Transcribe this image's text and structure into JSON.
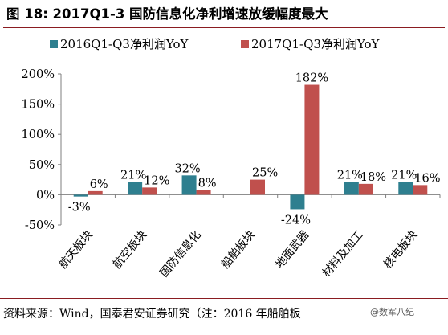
{
  "figure": {
    "title": "图 18: 2017Q1-3 国防信息化净利增速放缓幅度最大",
    "source": "资料来源：Wind，国泰君安证券研究（注：2016 年船舶板",
    "watermark": "@数军八纪"
  },
  "chart_data": {
    "type": "bar",
    "categories": [
      "航天板块",
      "航空板块",
      "国防信息化",
      "船舶板块",
      "地面武器",
      "材料及加工",
      "核电板块"
    ],
    "series": [
      {
        "name": "2016Q1-Q3净利润YoY",
        "color": "#2e7f8f",
        "values": [
          -3,
          21,
          32,
          null,
          -24,
          21,
          21
        ],
        "labels": [
          "-3%",
          "21%",
          "32%",
          "",
          "-24%",
          "21%",
          "21%"
        ]
      },
      {
        "name": "2017Q1-Q3净利润YoY",
        "color": "#c0504d",
        "values": [
          6,
          12,
          8,
          25,
          182,
          18,
          16
        ],
        "labels": [
          "6%",
          "12%",
          "8%",
          "25%",
          "182%",
          "18%",
          "16%"
        ]
      }
    ],
    "ylim": [
      -50,
      200
    ],
    "yticks": [
      -50,
      0,
      50,
      100,
      150,
      200
    ],
    "ytick_labels": [
      "-50%",
      "0%",
      "50%",
      "100%",
      "150%",
      "200%"
    ],
    "legend_position": "top",
    "grid": false
  }
}
